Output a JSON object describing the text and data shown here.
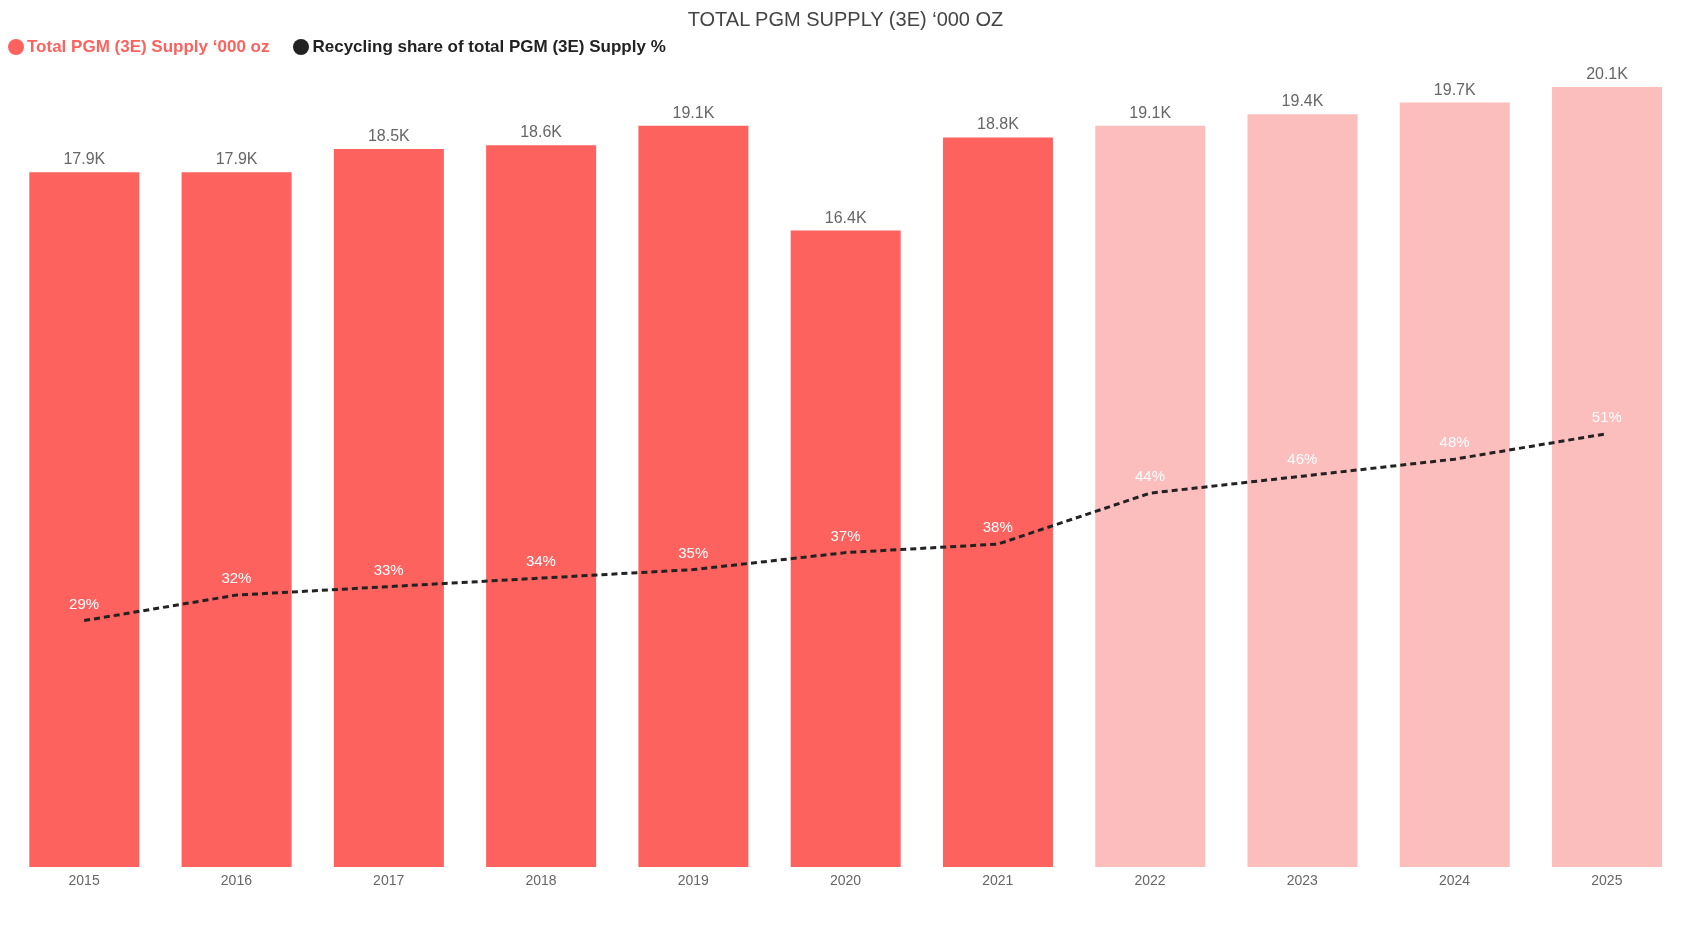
{
  "chart_data": {
    "type": "bar",
    "title": "TOTAL PGM SUPPLY (3E) ‘000 OZ",
    "legend": "top left",
    "tick_labels": "x",
    "categories": [
      "2015",
      "2016",
      "2017",
      "2018",
      "2019",
      "2020",
      "2021",
      "2022",
      "2023",
      "2024",
      "2025"
    ],
    "series": [
      {
        "name": "Total PGM (3E) Supply ‘000 oz",
        "color": "#fd625e",
        "colors": [
          "#fd625e",
          "#fd625e",
          "#fd625e",
          "#fd625e",
          "#fd625e",
          "#fd625e",
          "#fd625e",
          "#fcbdbd",
          "#fcbdbd",
          "#fcbdbd",
          "#fcbdbd"
        ],
        "values": [
          17900,
          17900,
          18500,
          18600,
          19100,
          16400,
          18800,
          19100,
          19400,
          19700,
          20100
        ],
        "value_labels": [
          "17.9K",
          "17.9K",
          "18.5K",
          "18.6K",
          "19.1K",
          "16.4K",
          "18.8K",
          "19.1K",
          "19.4K",
          "19.7K",
          "20.1K"
        ]
      },
      {
        "type": "line",
        "axis": "y2",
        "name": "Recycling share of total PGM (3E) Supply %",
        "color": "#222222",
        "line_style": "dashed",
        "marker": "none",
        "values": [
          29,
          32,
          33,
          34,
          35,
          37,
          38,
          44,
          46,
          48,
          51
        ],
        "value_labels": [
          "29%",
          "32%",
          "33%",
          "34%",
          "35%",
          "37%",
          "38%",
          "44%",
          "46%",
          "48%",
          "51%"
        ]
      }
    ]
  }
}
